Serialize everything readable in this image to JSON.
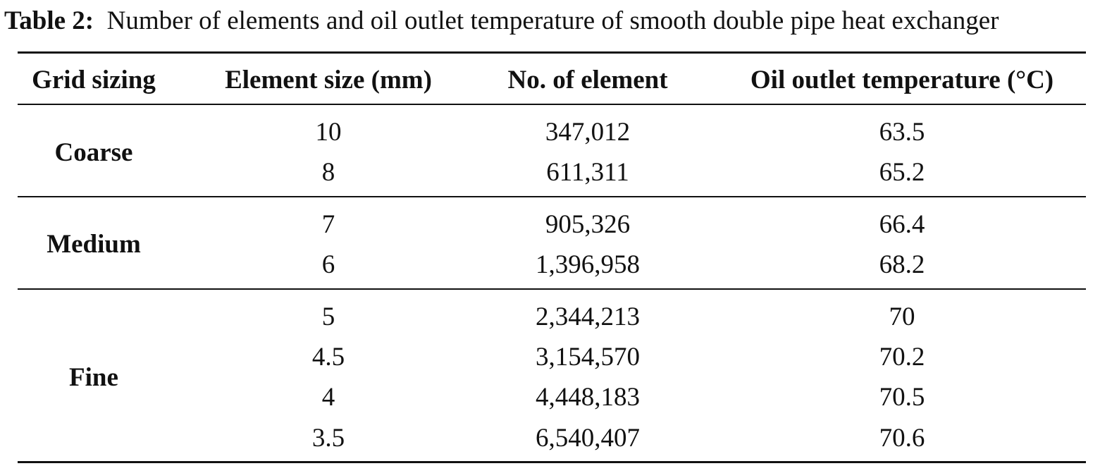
{
  "caption": {
    "label": "Table 2:",
    "text": "Number of elements and oil outlet temperature of smooth double pipe heat exchanger"
  },
  "table": {
    "header": [
      "Grid sizing",
      "Element size (mm)",
      "No. of element",
      "Oil outlet temperature (°C)"
    ],
    "groups": [
      {
        "name": "Coarse",
        "rows": [
          [
            "10",
            "347,012",
            "63.5"
          ],
          [
            "8",
            "611,311",
            "65.2"
          ]
        ]
      },
      {
        "name": "Medium",
        "rows": [
          [
            "7",
            "905,326",
            "66.4"
          ],
          [
            "6",
            "1,396,958",
            "68.2"
          ]
        ]
      },
      {
        "name": "Fine",
        "rows": [
          [
            "5",
            "2,344,213",
            "70"
          ],
          [
            "4.5",
            "3,154,570",
            "70.2"
          ],
          [
            "4",
            "4,448,183",
            "70.5"
          ],
          [
            "3.5",
            "6,540,407",
            "70.6"
          ]
        ]
      }
    ]
  }
}
